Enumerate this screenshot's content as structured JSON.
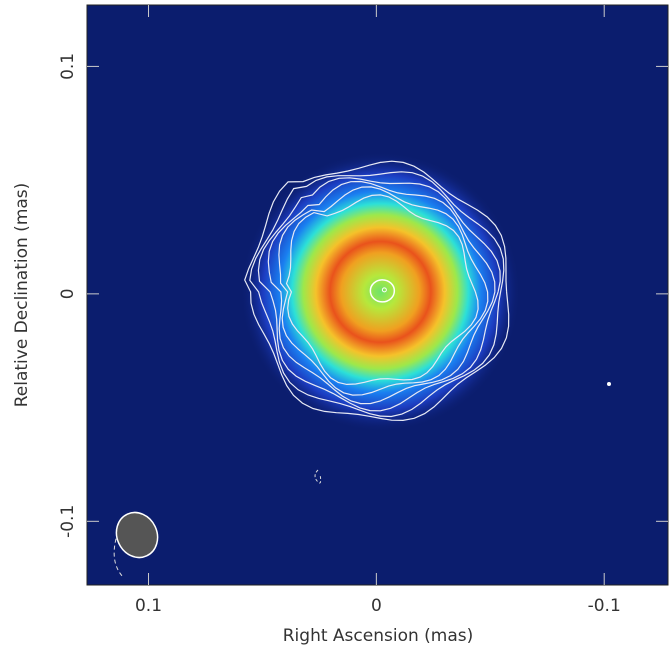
{
  "chart_data": {
    "type": "image",
    "x_label": "Right Ascension  (mas)",
    "y_label": "Relative Declination  (mas)",
    "xlim": [
      0.127,
      -0.128
    ],
    "xticks": [
      0.1,
      0,
      -0.1
    ],
    "ylim": [
      -0.128,
      0.127
    ],
    "yticks": [
      -0.1,
      0,
      0.1
    ]
  }
}
